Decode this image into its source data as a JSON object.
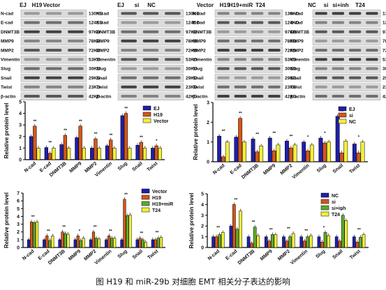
{
  "caption": "图 H19 和 miR-29b 对细胞 EMT 相关分子表达的影响",
  "blots": [
    {
      "header": [
        "EJ",
        "H19",
        "Vector"
      ],
      "proteins": [
        "N-cad",
        "E-cad",
        "DNMT3B",
        "MMP9",
        "MMP2",
        "Vimentin",
        "Slug",
        "Snail",
        "Twist",
        "β-actin"
      ],
      "sizes": [
        "130KD",
        "124KD",
        "97KD",
        "78KD",
        "72KD",
        "53KD",
        "30KD",
        "29KD",
        "23KD",
        "42KD"
      ]
    },
    {
      "header": [
        "EJ",
        "si",
        "NC"
      ],
      "proteins": [
        "N-cad",
        "E-cad",
        "DNMT3B",
        "MMP9",
        "MMP2",
        "Vimentin",
        "Slug",
        "Snail",
        "Twist",
        "β-actin"
      ],
      "sizes": [
        "130KD",
        "124KD",
        "97KD",
        "78KD",
        "72KD",
        "53KD",
        "30KD",
        "29KD",
        "23KD",
        "42KD"
      ]
    },
    {
      "header": [
        "Vector",
        "H19",
        "H19+miR",
        "T24"
      ],
      "proteins": [
        "N-cad",
        "E-cad",
        "DNMT3B",
        "MMP9",
        "MMP2",
        "Vimentin",
        "Slug",
        "Snail",
        "Twist",
        "β-actin"
      ],
      "sizes": [
        "130KD",
        "124KD",
        "97KD",
        "78KD",
        "72KD",
        "53KD",
        "30KD",
        "29KD",
        "23KD",
        "42KD"
      ]
    },
    {
      "header": [
        "NC",
        "si",
        "si+inh",
        "T24"
      ],
      "proteins": [
        "N-cad",
        "E-cad",
        "DNMT3B",
        "MMP9",
        "MMP2",
        "Vimentin",
        "Slug",
        "Snail",
        "Twist",
        "β-actin"
      ],
      "sizes": [
        "130KD",
        "124KD",
        "97KD",
        "78KD",
        "72KD",
        "53KD",
        "30KD",
        "29KD",
        "23KD",
        "42KD"
      ]
    }
  ],
  "chart_data": [
    {
      "type": "bar",
      "ylabel": "Relative protein level",
      "ylim": [
        0,
        5
      ],
      "yticks": [
        0,
        1,
        2,
        3,
        4,
        5
      ],
      "categories": [
        "N-cad",
        "E-cad",
        "DNMT3B",
        "MMP9",
        "MMP2",
        "Vimentin",
        "Slug",
        "Snail",
        "Twist"
      ],
      "legend_position": "top-right",
      "series": [
        {
          "name": "EJ",
          "color": "#1f1fa8",
          "values": [
            2.0,
            1.05,
            1.3,
            1.9,
            1.0,
            1.2,
            3.8,
            1.25,
            1.0
          ]
        },
        {
          "name": "H19",
          "color": "#d2571a",
          "values": [
            2.9,
            0.55,
            2.1,
            2.9,
            1.8,
            1.7,
            4.0,
            1.5,
            1.2
          ]
        },
        {
          "name": "Vector",
          "color": "#f2ef3a",
          "values": [
            1.0,
            1.0,
            1.0,
            1.0,
            1.0,
            1.0,
            1.0,
            1.0,
            1.0
          ]
        }
      ],
      "annotations": [
        "**",
        "**",
        "**",
        "**",
        "**",
        "**",
        "**",
        "**",
        "*"
      ]
    },
    {
      "type": "bar",
      "ylabel": "Relative protein level",
      "ylim": [
        0,
        3
      ],
      "yticks": [
        0,
        1,
        2,
        3
      ],
      "categories": [
        "N-cad",
        "E-cad",
        "DNMT3B",
        "MMP9",
        "MMP2",
        "Vimentin",
        "Slug",
        "Snail",
        "Twist"
      ],
      "legend_position": "top-right",
      "series": [
        {
          "name": "EJ",
          "color": "#1f1fa8",
          "values": [
            1.3,
            1.25,
            1.15,
            1.2,
            1.05,
            1.0,
            1.2,
            2.3,
            0.9
          ]
        },
        {
          "name": "si",
          "color": "#d2571a",
          "values": [
            0.25,
            2.2,
            0.5,
            0.55,
            0.7,
            0.55,
            0.95,
            0.45,
            0.45
          ]
        },
        {
          "name": "NC",
          "color": "#f2ef3a",
          "values": [
            1.0,
            1.0,
            0.8,
            0.85,
            0.85,
            0.85,
            1.0,
            1.05,
            1.0
          ]
        }
      ],
      "annotations": [
        "**",
        "**",
        "**",
        "**",
        "**",
        "*",
        "*",
        "**",
        "*"
      ]
    },
    {
      "type": "bar",
      "ylabel": "Relative protein level",
      "ylim": [
        0,
        7
      ],
      "yticks": [
        0,
        1,
        2,
        3,
        4,
        5,
        6,
        7
      ],
      "categories": [
        "N-cad",
        "E-cad",
        "DNMT3B",
        "MMP9",
        "MMP2",
        "Vimentin",
        "Slug",
        "Snail",
        "Twist"
      ],
      "legend_position": "top-right",
      "series": [
        {
          "name": "Vector",
          "color": "#1f1fa8",
          "values": [
            1.0,
            1.0,
            1.0,
            1.0,
            1.0,
            1.0,
            1.0,
            1.0,
            1.0
          ]
        },
        {
          "name": "H19",
          "color": "#d2571a",
          "values": [
            3.3,
            1.5,
            2.0,
            1.5,
            2.0,
            1.5,
            6.2,
            1.2,
            1.0
          ]
        },
        {
          "name": "H19+miR",
          "color": "#5fa82e",
          "values": [
            3.2,
            0.9,
            1.8,
            0.9,
            1.2,
            1.2,
            4.1,
            1.0,
            1.2
          ]
        },
        {
          "name": "T24",
          "color": "#f2ef3a",
          "values": [
            3.3,
            1.5,
            1.7,
            1.2,
            1.1,
            1.2,
            4.2,
            0.7,
            1.3
          ]
        }
      ],
      "annotations": [
        "**",
        "**",
        "**",
        "*",
        "**",
        "**",
        "**",
        "**",
        "**"
      ]
    },
    {
      "type": "bar",
      "ylabel": "Relative protein level",
      "ylim": [
        0,
        5
      ],
      "yticks": [
        0,
        1,
        2,
        3,
        4,
        5
      ],
      "categories": [
        "N-cad",
        "E-cad",
        "DNMT3B",
        "MMP9",
        "MMP2",
        "Vimentin",
        "Slug",
        "Snail",
        "Twist"
      ],
      "legend_position": "top-right",
      "series": [
        {
          "name": "NC",
          "color": "#1f1fa8",
          "values": [
            1.0,
            2.0,
            1.0,
            1.0,
            1.0,
            1.0,
            1.0,
            1.0,
            1.0
          ]
        },
        {
          "name": "si",
          "color": "#d2571a",
          "values": [
            1.0,
            4.0,
            0.4,
            0.6,
            0.6,
            0.6,
            0.5,
            0.6,
            0.5
          ]
        },
        {
          "name": "si+inh",
          "color": "#5fa82e",
          "values": [
            1.2,
            1.7,
            1.9,
            1.2,
            1.0,
            1.0,
            1.4,
            3.0,
            0.95
          ]
        },
        {
          "name": "T24",
          "color": "#f2ef3a",
          "values": [
            1.4,
            3.4,
            1.1,
            1.2,
            1.3,
            1.1,
            1.1,
            2.5,
            1.2
          ]
        }
      ],
      "annotations": [
        "**",
        "**",
        "**",
        "**",
        "**",
        "**",
        "*",
        "*",
        "**"
      ]
    }
  ]
}
